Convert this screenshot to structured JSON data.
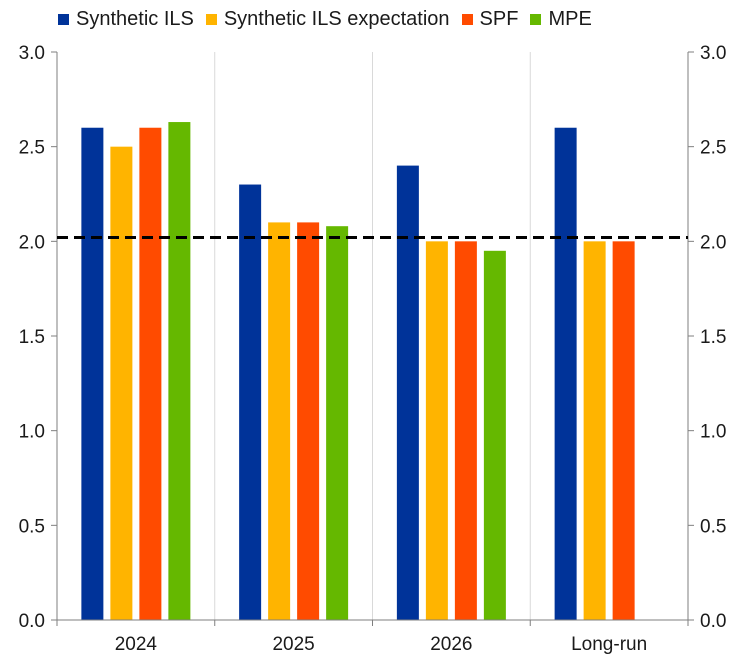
{
  "chart_data": {
    "type": "bar",
    "categories": [
      "2024",
      "2025",
      "2026",
      "Long-run"
    ],
    "series": [
      {
        "name": "Synthetic ILS",
        "color": "#003399",
        "values": [
          2.6,
          2.3,
          2.4,
          2.6
        ]
      },
      {
        "name": "Synthetic ILS expectation",
        "color": "#FFB400",
        "values": [
          2.5,
          2.1,
          2.0,
          2.0
        ]
      },
      {
        "name": "SPF",
        "color": "#FF4B00",
        "values": [
          2.6,
          2.1,
          2.0,
          2.0
        ]
      },
      {
        "name": "MPE",
        "color": "#65B800",
        "values": [
          2.63,
          2.08,
          1.95,
          null
        ]
      }
    ],
    "ylim": [
      0.0,
      3.0
    ],
    "yticks": [
      "0.0",
      "0.5",
      "1.0",
      "1.5",
      "2.0",
      "2.5",
      "3.0"
    ],
    "reference_line": {
      "value": 2.02,
      "style": "dashed",
      "color": "#000000"
    },
    "legend_position": "top",
    "grid": "vertical separators between categories",
    "title": "",
    "xlabel": "",
    "ylabel": ""
  }
}
